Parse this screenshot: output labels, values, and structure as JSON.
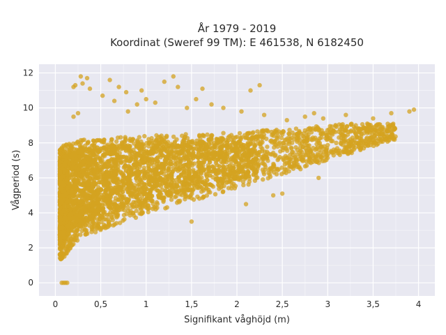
{
  "chart_data": {
    "type": "scatter",
    "title_line1": "År 1979 - 2019",
    "title_line2": "Koordinat (Sweref 99 TM): E 461538, N 6182450",
    "xlabel": "Signifikant våghöjd (m)",
    "ylabel": "Vågperiod (s)",
    "xlim": [
      -0.18,
      4.18
    ],
    "ylim": [
      -0.75,
      12.5
    ],
    "x_ticks": [
      0,
      0.5,
      1,
      1.5,
      2,
      2.5,
      3,
      3.5,
      4
    ],
    "x_tick_labels": [
      "0",
      "0,5",
      "1",
      "1,5",
      "2",
      "2,5",
      "3",
      "3,5",
      "4"
    ],
    "y_ticks": [
      0,
      2,
      4,
      6,
      8,
      10,
      12
    ],
    "y_tick_labels": [
      "0",
      "2",
      "4",
      "6",
      "8",
      "10",
      "12"
    ],
    "grid": true,
    "marker_color": "#D4A320",
    "background_color": "#E8E8F1",
    "series": [
      {
        "description": "dense point cloud, lower and upper envelope of wave period vs significant wave height",
        "envelope_x": [
          0.05,
          0.1,
          0.2,
          0.3,
          0.5,
          0.75,
          1.0,
          1.25,
          1.5,
          1.75,
          2.0,
          2.25,
          2.5,
          2.75,
          3.0,
          3.25,
          3.5,
          3.75
        ],
        "envelope_y_low": [
          1.3,
          1.5,
          2.2,
          2.6,
          3.0,
          3.5,
          3.9,
          4.3,
          4.7,
          5.0,
          5.4,
          5.8,
          6.2,
          6.6,
          7.0,
          7.4,
          7.8,
          8.2
        ],
        "envelope_y_high": [
          7.6,
          7.9,
          8.1,
          8.2,
          8.3,
          8.4,
          8.4,
          8.5,
          8.5,
          8.6,
          8.6,
          8.7,
          8.8,
          8.9,
          9.0,
          9.1,
          9.1,
          9.1
        ],
        "outliers": [
          [
            0.07,
            0.0
          ],
          [
            0.09,
            0.0
          ],
          [
            0.11,
            0.0
          ],
          [
            0.13,
            0.0
          ],
          [
            0.2,
            11.2
          ],
          [
            0.22,
            11.3
          ],
          [
            0.28,
            11.8
          ],
          [
            0.3,
            11.4
          ],
          [
            0.35,
            11.7
          ],
          [
            0.38,
            11.1
          ],
          [
            0.52,
            10.7
          ],
          [
            0.6,
            11.6
          ],
          [
            0.65,
            10.4
          ],
          [
            0.7,
            11.2
          ],
          [
            0.78,
            10.9
          ],
          [
            0.95,
            11.0
          ],
          [
            1.0,
            10.5
          ],
          [
            1.1,
            10.3
          ],
          [
            1.2,
            11.5
          ],
          [
            1.3,
            11.8
          ],
          [
            1.35,
            11.2
          ],
          [
            1.45,
            10.0
          ],
          [
            1.55,
            10.5
          ],
          [
            1.62,
            11.1
          ],
          [
            1.72,
            10.2
          ],
          [
            1.85,
            10.0
          ],
          [
            2.05,
            9.8
          ],
          [
            2.15,
            11.0
          ],
          [
            2.25,
            11.3
          ],
          [
            2.3,
            9.6
          ],
          [
            0.2,
            9.5
          ],
          [
            0.25,
            9.7
          ],
          [
            0.8,
            9.8
          ],
          [
            0.9,
            10.2
          ],
          [
            2.55,
            9.3
          ],
          [
            2.75,
            9.5
          ],
          [
            2.85,
            9.7
          ],
          [
            2.95,
            9.4
          ],
          [
            3.2,
            9.6
          ],
          [
            3.5,
            9.4
          ],
          [
            3.7,
            9.7
          ],
          [
            3.9,
            9.8
          ],
          [
            3.95,
            9.9
          ],
          [
            2.9,
            6.0
          ],
          [
            2.7,
            6.5
          ],
          [
            2.4,
            5.0
          ],
          [
            2.5,
            5.1
          ],
          [
            2.1,
            4.5
          ],
          [
            1.5,
            3.5
          ]
        ]
      }
    ]
  }
}
